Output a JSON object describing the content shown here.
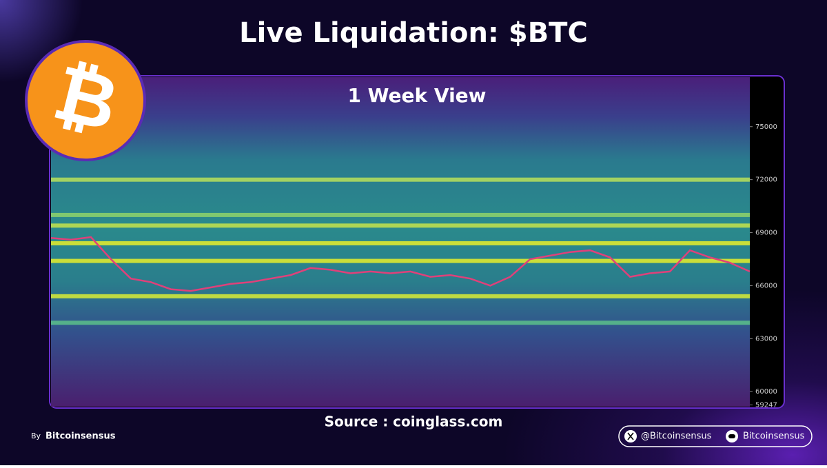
{
  "header": {
    "title": "Live Liquidation: $BTC",
    "logo": "₿"
  },
  "chart_data": {
    "type": "heatmap",
    "subtitle": "1 Week View",
    "ylim": [
      59150,
      77800
    ],
    "yticks": [
      75000,
      72000,
      69000,
      66000,
      63000,
      60000,
      59247
    ],
    "price_color": "#e0407a",
    "values": [
      68700,
      68600,
      68750,
      67500,
      66400,
      66200,
      65800,
      65700,
      65900,
      66100,
      66200,
      66400,
      66600,
      67000,
      66900,
      66700,
      66800,
      66700,
      66800,
      66500,
      66600,
      66400,
      66000,
      66500,
      67500,
      67700,
      67900,
      68000,
      67600,
      66500,
      66700,
      66800,
      68000,
      67600,
      67300,
      66800
    ],
    "liquidation_levels": [
      {
        "value": 72000,
        "color": "#b8e05a"
      },
      {
        "value": 70000,
        "color": "#8fd46a"
      },
      {
        "value": 69400,
        "color": "#c6e34a"
      },
      {
        "value": 68400,
        "color": "#e6ef2a"
      },
      {
        "value": 67400,
        "color": "#e6ef2a"
      },
      {
        "value": 65400,
        "color": "#d9ec35"
      },
      {
        "value": 63900,
        "color": "#5cc18a"
      }
    ]
  },
  "footer": {
    "source": "Source : coinglass.com",
    "by": "By",
    "author": "Bitcoinsensus",
    "twitter": "@Bitcoinsensus",
    "discord": "Bitcoinsensus"
  }
}
